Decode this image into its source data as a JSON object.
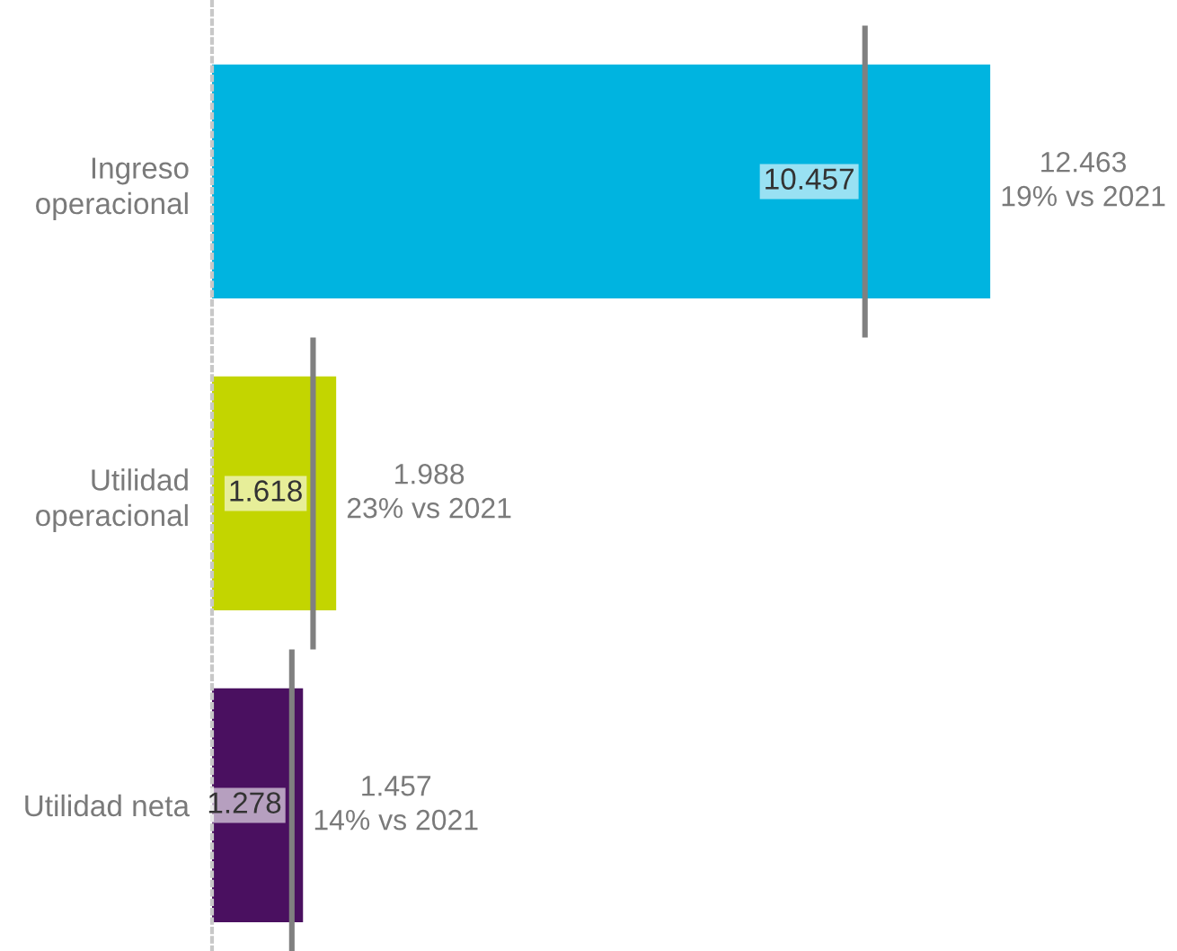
{
  "chart_data": {
    "type": "bar",
    "orientation": "horizontal",
    "categories": [
      "Ingreso\noperacional",
      "Utilidad\noperacional",
      "Utilidad neta"
    ],
    "series": [
      {
        "colors": [
          "#00b4e0",
          "#c3d500",
          "#4a1060"
        ],
        "values": [
          12.463,
          1.988,
          1.457
        ],
        "value_labels": [
          "12.463\n19% vs 2021",
          "1.988\n23% vs 2021",
          "1.457\n14% vs 2021"
        ]
      }
    ],
    "ref_lines": [
      {
        "axis": "x",
        "value": 10.457,
        "label": "10.457",
        "color": "#808080"
      },
      {
        "axis": "x",
        "value": 1.618,
        "label": "1.618",
        "color": "#808080"
      },
      {
        "axis": "x",
        "value": 1.278,
        "label": "1.278",
        "color": "#808080"
      }
    ],
    "tick_labels": "y",
    "grid": false
  }
}
